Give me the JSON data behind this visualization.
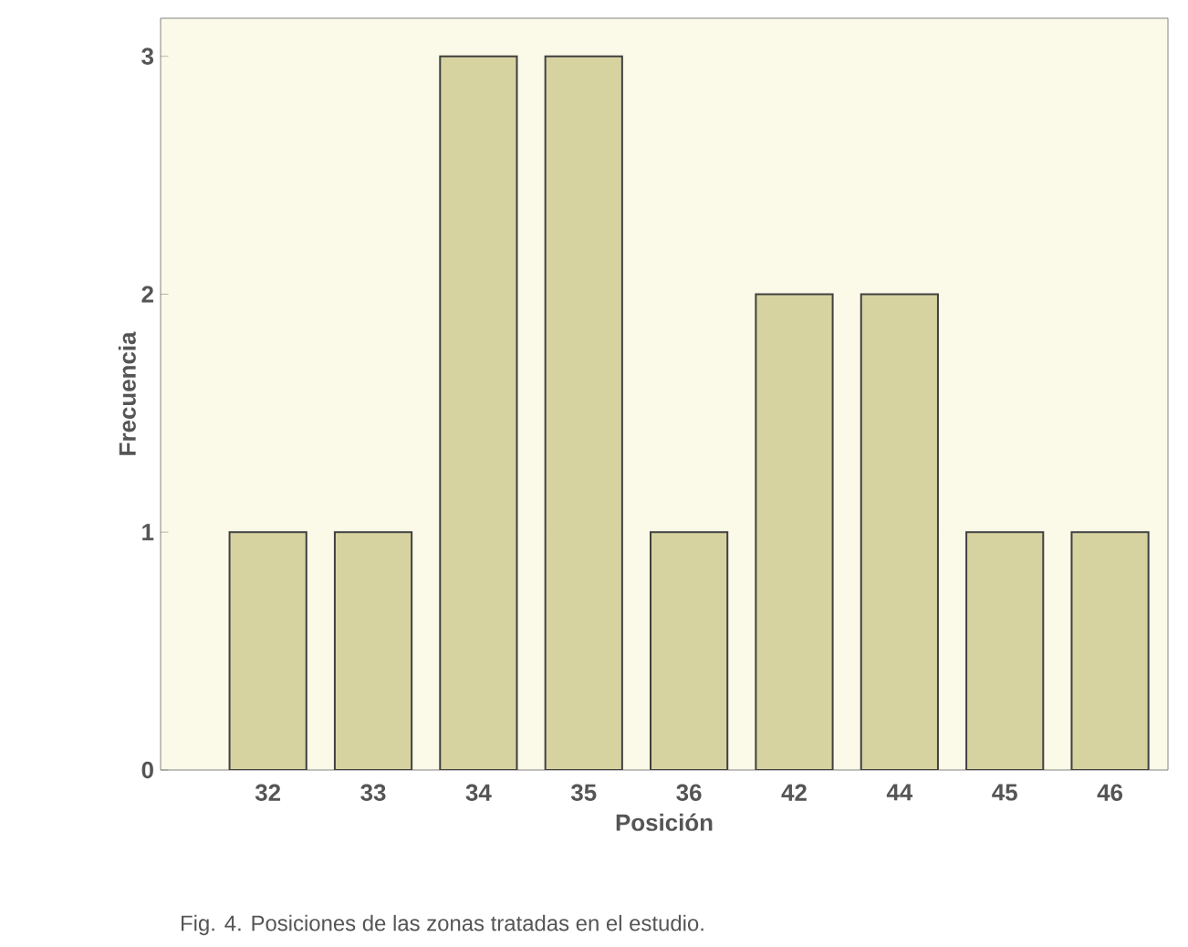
{
  "chart_data": {
    "type": "bar",
    "xlabel": "Posición",
    "ylabel": "Frecuencia",
    "categories": [
      "32",
      "33",
      "34",
      "35",
      "36",
      "42",
      "44",
      "45",
      "46"
    ],
    "values": [
      1,
      1,
      3,
      3,
      1,
      2,
      2,
      1,
      1
    ],
    "color": "#d6d3a1",
    "ylim": [
      0,
      3.16
    ],
    "yticks": [
      0,
      1,
      2,
      3
    ],
    "grid": false,
    "annotations": [
      "Fig. 4. Posiciones de las zonas tratadas en el estudio."
    ]
  }
}
